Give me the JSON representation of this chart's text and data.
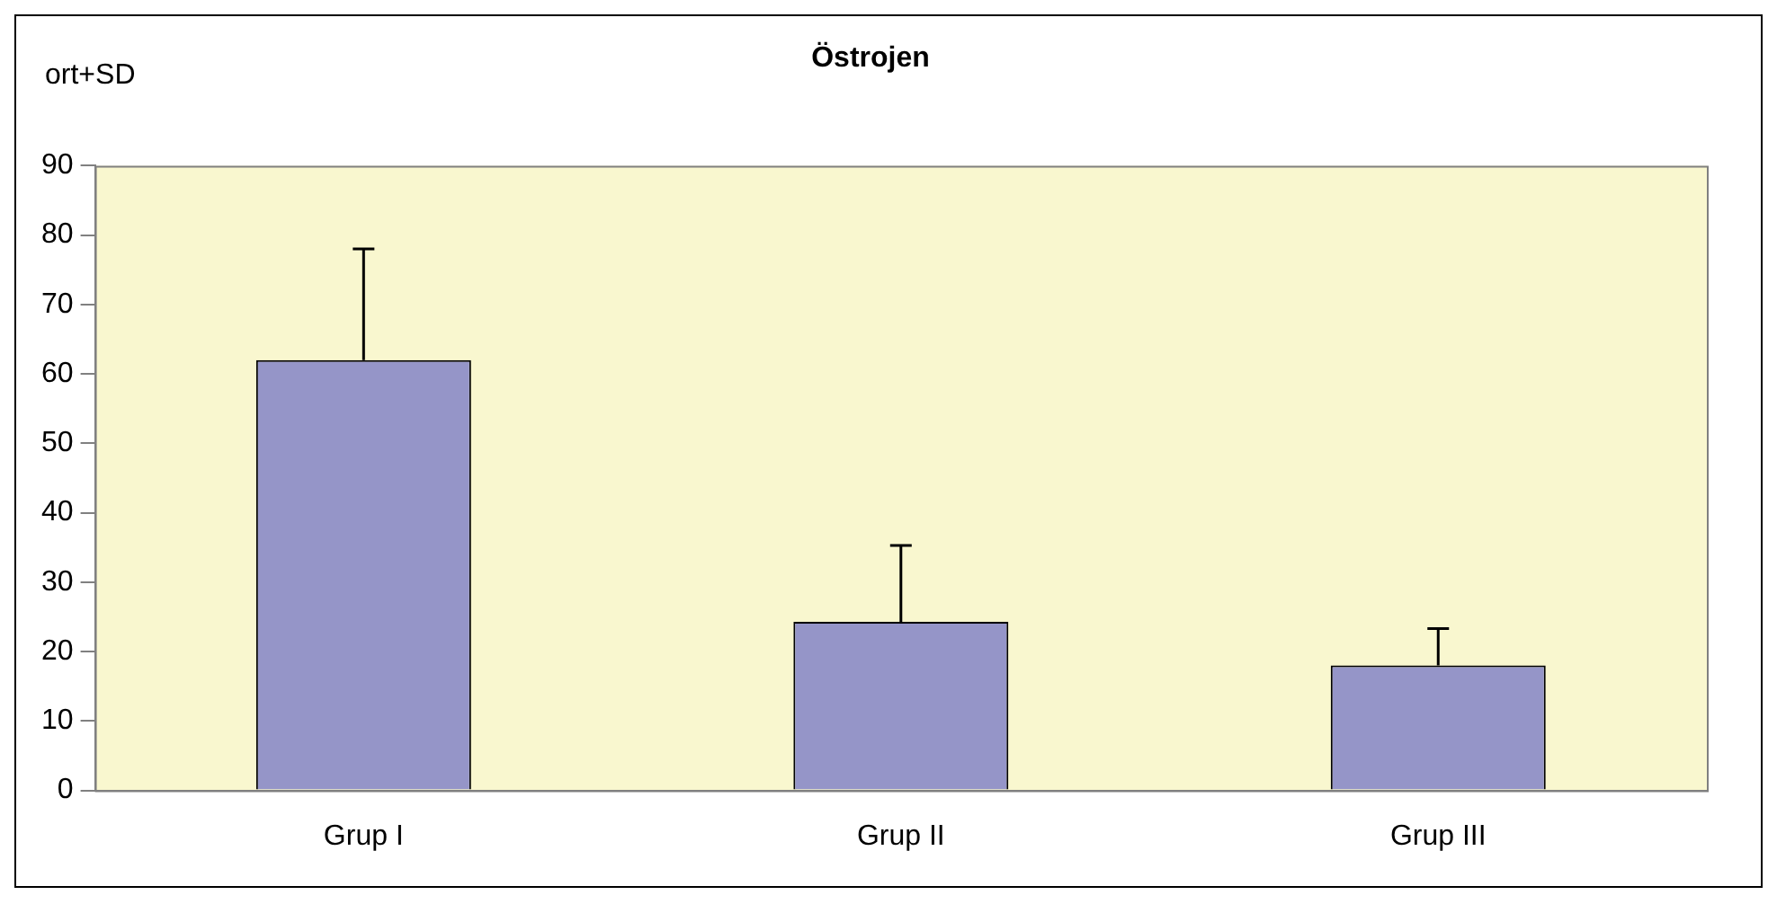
{
  "chart_data": {
    "type": "bar",
    "title": "Östrojen",
    "ylabel": "ort+SD",
    "categories": [
      "Grup I",
      "Grup II",
      "Grup III"
    ],
    "values": [
      62,
      24.3,
      18
    ],
    "errors": [
      [
        62,
        78
      ],
      [
        24.3,
        35.3
      ],
      [
        18,
        23.3
      ]
    ],
    "color": "#9595c8",
    "ylim": [
      0,
      90
    ],
    "yticks": [
      0,
      10,
      20,
      30,
      40,
      50,
      60,
      70,
      80,
      90
    ],
    "grid": false,
    "legend": false
  }
}
